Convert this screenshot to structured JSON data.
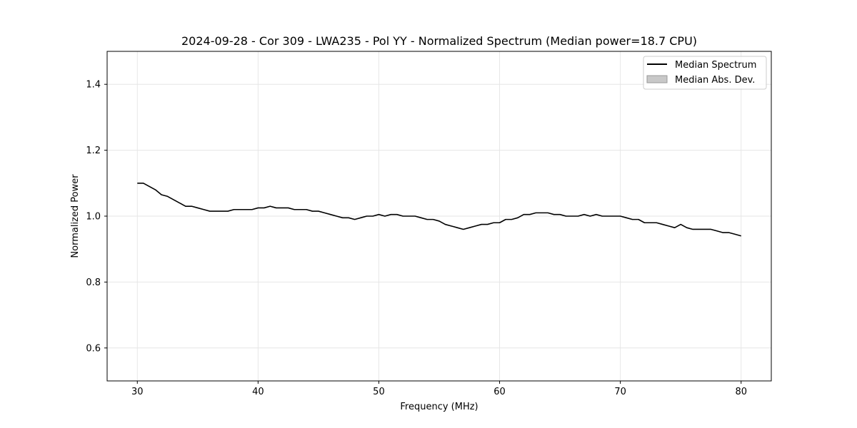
{
  "chart_data": {
    "type": "line",
    "title": "2024-09-28 - Cor 309 - LWA235 - Pol YY - Normalized Spectrum (Median power=18.7 CPU)",
    "xlabel": "Frequency (MHz)",
    "ylabel": "Normalized Power",
    "xlim": [
      27.5,
      82.5
    ],
    "ylim": [
      0.5,
      1.5
    ],
    "xticks": [
      30,
      40,
      50,
      60,
      70,
      80
    ],
    "yticks": [
      0.6,
      0.8,
      1.0,
      1.2,
      1.4
    ],
    "xtick_labels": [
      "30",
      "40",
      "50",
      "60",
      "70",
      "80"
    ],
    "ytick_labels": [
      "0.6",
      "0.8",
      "1.0",
      "1.2",
      "1.4"
    ],
    "grid": true,
    "legend_position": "top-right",
    "legend": [
      "Median Spectrum",
      "Median Abs. Dev."
    ],
    "series": [
      {
        "name": "Median Spectrum",
        "color": "#000000",
        "x": [
          30,
          30.5,
          31,
          31.5,
          32,
          32.5,
          33,
          33.5,
          34,
          34.5,
          35,
          35.5,
          36,
          36.5,
          37,
          37.5,
          38,
          38.5,
          39,
          39.5,
          40,
          40.5,
          41,
          41.5,
          42,
          42.5,
          43,
          43.5,
          44,
          44.5,
          45,
          45.5,
          46,
          46.5,
          47,
          47.5,
          48,
          48.5,
          49,
          49.5,
          50,
          50.5,
          51,
          51.5,
          52,
          52.5,
          53,
          53.5,
          54,
          54.5,
          55,
          55.5,
          56,
          56.5,
          57,
          57.5,
          58,
          58.5,
          59,
          59.5,
          60,
          60.5,
          61,
          61.5,
          62,
          62.5,
          63,
          63.5,
          64,
          64.5,
          65,
          65.5,
          66,
          66.5,
          67,
          67.5,
          68,
          68.5,
          69,
          69.5,
          70,
          70.5,
          71,
          71.5,
          72,
          72.5,
          73,
          73.5,
          74,
          74.5,
          75,
          75.5,
          76,
          76.5,
          77,
          77.5,
          78,
          78.5,
          79,
          79.5,
          80
        ],
        "values": [
          1.1,
          1.1,
          1.09,
          1.08,
          1.065,
          1.06,
          1.05,
          1.04,
          1.03,
          1.03,
          1.025,
          1.02,
          1.015,
          1.015,
          1.015,
          1.015,
          1.02,
          1.02,
          1.02,
          1.02,
          1.025,
          1.025,
          1.03,
          1.025,
          1.025,
          1.025,
          1.02,
          1.02,
          1.02,
          1.015,
          1.015,
          1.01,
          1.005,
          1.0,
          0.995,
          0.995,
          0.99,
          0.995,
          1.0,
          1.0,
          1.005,
          1.0,
          1.005,
          1.005,
          1.0,
          1.0,
          1.0,
          0.995,
          0.99,
          0.99,
          0.985,
          0.975,
          0.97,
          0.965,
          0.96,
          0.965,
          0.97,
          0.975,
          0.975,
          0.98,
          0.98,
          0.99,
          0.99,
          0.995,
          1.005,
          1.005,
          1.01,
          1.01,
          1.01,
          1.005,
          1.005,
          1.0,
          1.0,
          1.0,
          1.005,
          1.0,
          1.005,
          1.0,
          1.0,
          1.0,
          1.0,
          0.995,
          0.99,
          0.99,
          0.98,
          0.98,
          0.98,
          0.975,
          0.97,
          0.965,
          0.975,
          0.965,
          0.96,
          0.96,
          0.96,
          0.96,
          0.955,
          0.95,
          0.95,
          0.945,
          0.94
        ]
      },
      {
        "name": "Median Abs. Dev.",
        "color": "#c8c8c8",
        "type": "area",
        "values": []
      }
    ]
  }
}
